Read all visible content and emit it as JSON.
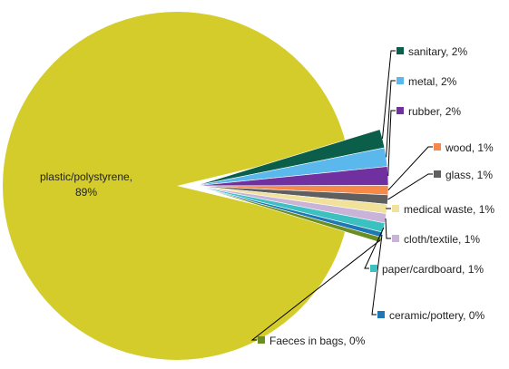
{
  "chart_data": {
    "type": "pie",
    "title": "",
    "slices": [
      {
        "label": "plastic/polystyrene",
        "value": 89,
        "display": "plastic/polystyrene, 89%",
        "color": "#d4cc2a"
      },
      {
        "label": "sanitary",
        "value": 2,
        "display": "sanitary, 2%",
        "color": "#0b5e4a"
      },
      {
        "label": "metal",
        "value": 2,
        "display": "metal, 2%",
        "color": "#5bb8ec"
      },
      {
        "label": "rubber",
        "value": 2,
        "display": "rubber, 2%",
        "color": "#7030a0"
      },
      {
        "label": "wood",
        "value": 1,
        "display": "wood, 1%",
        "color": "#f4894a"
      },
      {
        "label": "glass",
        "value": 1,
        "display": "glass, 1%",
        "color": "#5f5f5f"
      },
      {
        "label": "medical waste",
        "value": 1,
        "display": "medical waste, 1%",
        "color": "#f1e29b"
      },
      {
        "label": "cloth/textile",
        "value": 1,
        "display": "cloth/textile, 1%",
        "color": "#c9b3d9"
      },
      {
        "label": "paper/cardboard",
        "value": 1,
        "display": "paper/cardboard, 1%",
        "color": "#3cc1c1"
      },
      {
        "label": "ceramic/pottery",
        "value": 0,
        "display": "ceramic/pottery, 0%",
        "color": "#1f77b4"
      },
      {
        "label": "Faeces in bags",
        "value": 0,
        "display": "Faeces in bags, 0%",
        "color": "#6b8e23"
      }
    ],
    "exploded": true
  }
}
